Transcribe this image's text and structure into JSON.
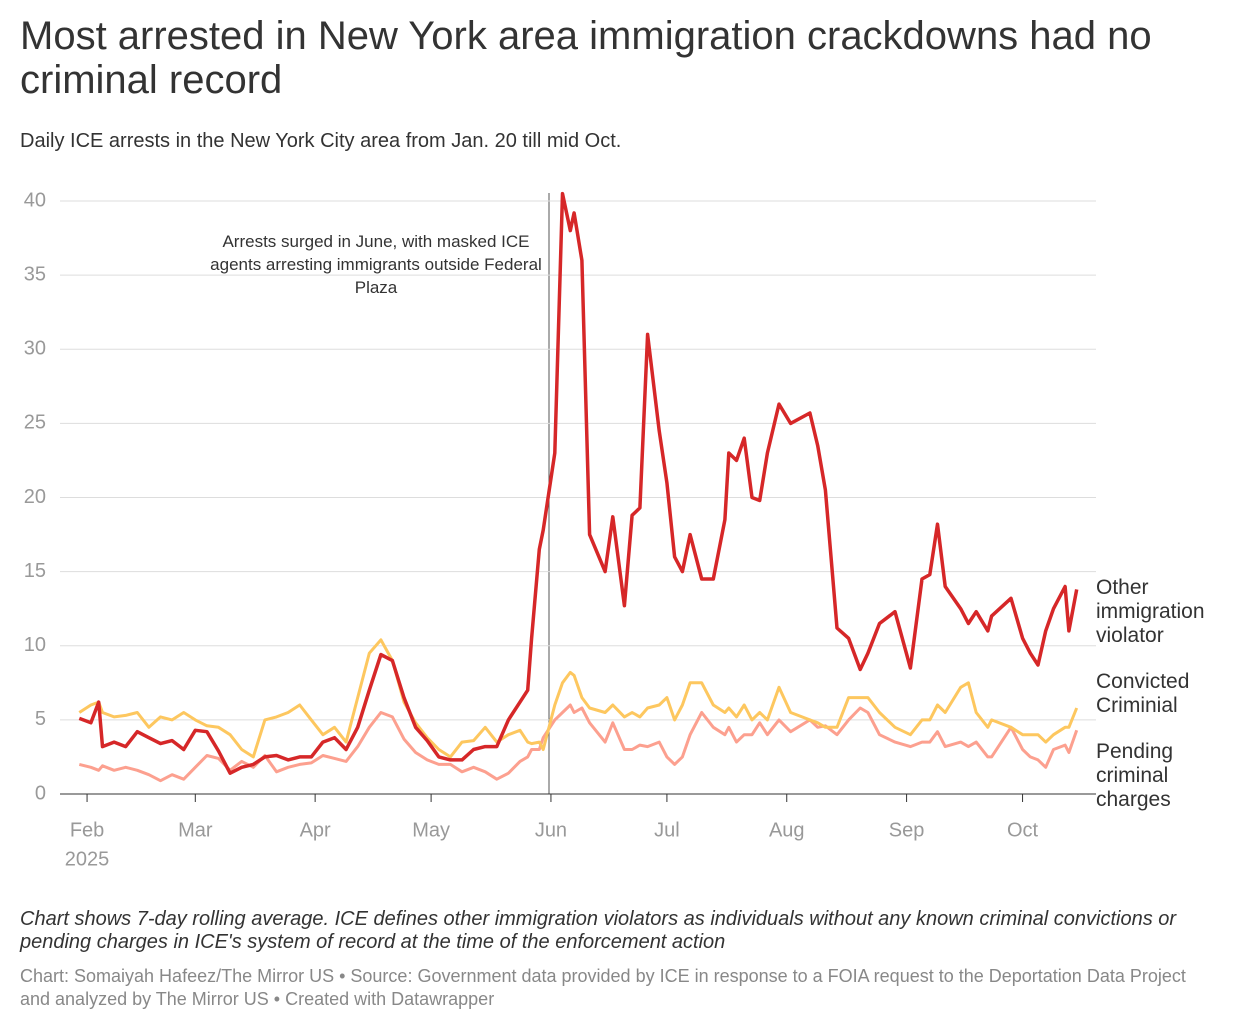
{
  "chart_data": {
    "type": "line",
    "title": "Most arrested in New York area immigration crackdowns had no criminal record",
    "subtitle": "Daily ICE arrests in the New York City area from Jan. 20 till mid Oct.",
    "annotation": "Arrests surged in June, with masked ICE agents arresting immigrants outside Federal Plaza",
    "note": "Chart shows 7-day rolling average. ICE defines other immigration violators as individuals without any known criminal convictions or pending charges in ICE's system of record at the time of the enforcement action",
    "credit": "Chart: Somaiyah Hafeez/The Mirror US • Source: Government data provided by ICE in response to a FOIA request to the Deportation Data Project and analyzed by The Mirror US • Created with Datawrapper",
    "year_label": "2025",
    "x": [
      30,
      33,
      35,
      36,
      39,
      42,
      45,
      48,
      51,
      54,
      57,
      60,
      63,
      66,
      69,
      72,
      75,
      78,
      81,
      84,
      87,
      90,
      93,
      96,
      99,
      102,
      105,
      108,
      111,
      114,
      117,
      120,
      123,
      126,
      129,
      132,
      135,
      138,
      141,
      144,
      146,
      147,
      149,
      150,
      153,
      155,
      157,
      158,
      160,
      162,
      166,
      168,
      171,
      173,
      175,
      177,
      180,
      182,
      184,
      186,
      188,
      191,
      194,
      197,
      198,
      200,
      202,
      204,
      206,
      208,
      211,
      214,
      219,
      221,
      223,
      226,
      229,
      232,
      234,
      237,
      241,
      245,
      248,
      250,
      252,
      254,
      258,
      260,
      262,
      265,
      266,
      271,
      274,
      276,
      278,
      280,
      282,
      285,
      286,
      288
    ],
    "series": [
      {
        "name": "Other immigration violator",
        "color": "#d62728",
        "values": [
          5.1,
          4.8,
          6.2,
          3.2,
          3.5,
          3.2,
          4.2,
          3.8,
          3.4,
          3.6,
          3.0,
          4.3,
          4.2,
          2.9,
          1.4,
          1.8,
          2.0,
          2.5,
          2.6,
          2.3,
          2.5,
          2.5,
          3.5,
          3.8,
          3.0,
          4.5,
          7.0,
          9.4,
          9.0,
          6.5,
          4.5,
          3.6,
          2.5,
          2.3,
          2.3,
          3.0,
          3.2,
          3.2,
          5.0,
          6.2,
          7.0,
          10.5,
          16.5,
          17.8,
          23,
          40.5,
          38,
          39.2,
          36,
          17.5,
          15,
          18.7,
          12.7,
          18.8,
          19.3,
          31,
          24.5,
          21,
          16,
          15,
          17.5,
          14.5,
          14.5,
          18.5,
          23,
          22.5,
          24,
          20,
          19.8,
          23,
          26.3,
          25,
          25.7,
          23.5,
          20.5,
          11.2,
          10.5,
          8.4,
          9.5,
          11.5,
          12.3,
          8.5,
          14.5,
          14.8,
          18.2,
          14,
          12.5,
          11.5,
          12.3,
          11,
          12,
          13.2,
          10.5,
          9.5,
          8.7,
          11,
          12.5,
          14,
          11,
          13.8
        ]
      },
      {
        "name": "Convicted Criminial",
        "color": "#fdc75f",
        "values": [
          5.5,
          6.0,
          6.2,
          5.5,
          5.2,
          5.3,
          5.5,
          4.5,
          5.2,
          5.0,
          5.5,
          5.0,
          4.6,
          4.5,
          4.0,
          3.0,
          2.5,
          5.0,
          5.2,
          5.5,
          6.0,
          5.0,
          4.0,
          4.5,
          3.5,
          6.5,
          9.5,
          10.4,
          9.0,
          6.2,
          4.8,
          3.8,
          3.0,
          2.5,
          3.5,
          3.6,
          4.5,
          3.5,
          4.0,
          4.3,
          3.5,
          3.4,
          3.5,
          3.0,
          6.0,
          7.5,
          8.2,
          8.0,
          6.5,
          5.8,
          5.5,
          6.0,
          5.2,
          5.5,
          5.2,
          5.8,
          6.0,
          6.5,
          5.0,
          6.0,
          7.5,
          7.5,
          6.0,
          5.5,
          5.8,
          5.2,
          6.0,
          5.0,
          5.5,
          5.0,
          7.2,
          5.5,
          5.0,
          4.8,
          4.5,
          4.5,
          6.5,
          6.5,
          6.5,
          5.5,
          4.5,
          4.0,
          5.0,
          5.0,
          6.0,
          5.5,
          7.2,
          7.5,
          5.5,
          4.5,
          5.0,
          4.5,
          4.0,
          4.0,
          4.0,
          3.5,
          4.0,
          4.5,
          4.5,
          5.8
        ]
      },
      {
        "name": "Pending criminal charges",
        "color": "#fca08f",
        "values": [
          2.0,
          1.8,
          1.6,
          1.9,
          1.6,
          1.8,
          1.6,
          1.3,
          0.9,
          1.3,
          1.0,
          1.8,
          2.6,
          2.4,
          1.6,
          2.2,
          1.8,
          2.6,
          1.5,
          1.8,
          2.0,
          2.1,
          2.6,
          2.4,
          2.2,
          3.2,
          4.5,
          5.5,
          5.2,
          3.7,
          2.8,
          2.3,
          2.0,
          2.0,
          1.5,
          1.8,
          1.5,
          1.0,
          1.4,
          2.2,
          2.5,
          3.0,
          3.0,
          3.8,
          5.0,
          5.5,
          6.0,
          5.5,
          5.8,
          4.8,
          3.5,
          4.8,
          3.0,
          3.0,
          3.3,
          3.2,
          3.5,
          2.5,
          2.0,
          2.5,
          4.0,
          5.5,
          4.5,
          4.0,
          4.5,
          3.5,
          4.0,
          4.0,
          4.8,
          4.0,
          5.0,
          4.2,
          5.0,
          4.5,
          4.6,
          4.0,
          5.0,
          5.8,
          5.5,
          4.0,
          3.5,
          3.2,
          3.5,
          3.5,
          4.2,
          3.2,
          3.5,
          3.2,
          3.5,
          2.5,
          2.5,
          4.5,
          3.0,
          2.5,
          2.3,
          1.8,
          3.0,
          3.3,
          2.8,
          4.3
        ]
      }
    ],
    "xlim": [
      25,
      293
    ],
    "xticks": [
      {
        "value": 32,
        "label": "Feb"
      },
      {
        "value": 60,
        "label": "Mar"
      },
      {
        "value": 91,
        "label": "Apr"
      },
      {
        "value": 121,
        "label": "May"
      },
      {
        "value": 152,
        "label": "Jun"
      },
      {
        "value": 182,
        "label": "Jul"
      },
      {
        "value": 213,
        "label": "Aug"
      },
      {
        "value": 244,
        "label": "Sep"
      },
      {
        "value": 274,
        "label": "Oct"
      }
    ],
    "ylim": [
      0,
      40
    ],
    "yticks": [
      0,
      5,
      10,
      15,
      20,
      25,
      30,
      35,
      40
    ],
    "grid": true
  }
}
